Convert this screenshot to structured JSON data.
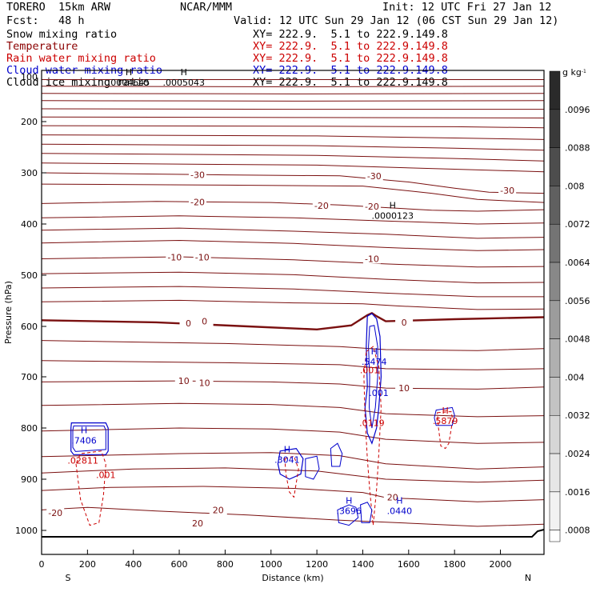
{
  "header": {
    "model": "TORERO  15km ARW",
    "center": "NCAR/MMM",
    "init": "Init: 12 UTC Fri 27 Jan 12",
    "fcst": "Fcst:   48 h",
    "valid": "Valid: 12 UTC Sun 29 Jan 12 (06 CST Sun 29 Jan 12)"
  },
  "legend": [
    {
      "name": "Snow mixing ratio",
      "color": "#000000",
      "xy": "XY= 222.9.  5.1 to 222.9.149.8",
      "xy_color": "#000000"
    },
    {
      "name": "Temperature",
      "color": "#8b0000",
      "xy": "XY= 222.9.  5.1 to 222.9.149.8",
      "xy_color": "#cc0000"
    },
    {
      "name": "Rain water mixing ratio",
      "color": "#cc0000",
      "xy": "XY= 222.9.  5.1 to 222.9.149.8",
      "xy_color": "#cc0000"
    },
    {
      "name": "Cloud water mixing ratio",
      "color": "#0000cc",
      "xy": "XY= 222.9.  5.1 to 222.9.149.8",
      "xy_color": "#0000cc"
    },
    {
      "name": "Cloud ice mixing ratio",
      "color": "#000000",
      "xy": "XY= 222.9.  5.1 to 222.9.149.8",
      "xy_color": "#000000"
    }
  ],
  "chart_data": {
    "type": "contour cross-section",
    "xlabel": "Distance (km)",
    "ylabel": "Pressure (hPa)",
    "xlim": [
      0,
      2190
    ],
    "ylim": [
      1050,
      100
    ],
    "x_ticks": [
      0,
      200,
      400,
      600,
      800,
      1000,
      1200,
      1400,
      1600,
      1800,
      2000
    ],
    "y_ticks": [
      200,
      300,
      400,
      500,
      600,
      700,
      800,
      900,
      1000
    ],
    "y_tick_labels": [
      "200",
      "300",
      "400",
      "500",
      "600",
      "700",
      "800",
      "900",
      "1000"
    ],
    "y_top_label": "100",
    "start_label": "S",
    "end_label": "N",
    "colorbar": {
      "unit": "g kg",
      "unit_exp": "-1",
      "ticks": [
        ".0096",
        ".0088",
        ".008",
        ".0072",
        ".0064",
        ".0056",
        ".0048",
        ".004",
        ".0032",
        ".0024",
        ".0016",
        ".0008"
      ],
      "shades": [
        "#2a2a2a",
        "#3a3a3a",
        "#4d4d4d",
        "#606060",
        "#747474",
        "#888888",
        "#9c9c9c",
        "#b0b0b0",
        "#c3c3c3",
        "#d6d6d6",
        "#e6e6e6",
        "#f2f2f2"
      ]
    },
    "temperature_lines": [
      {
        "label": "",
        "points": [
          [
            0,
            118
          ],
          [
            1100,
            118
          ],
          [
            2190,
            118
          ]
        ]
      },
      {
        "label": "",
        "points": [
          [
            0,
            131
          ],
          [
            1100,
            132
          ],
          [
            2190,
            131
          ]
        ]
      },
      {
        "label": "",
        "points": [
          [
            0,
            145
          ],
          [
            1100,
            146
          ],
          [
            2190,
            145
          ]
        ]
      },
      {
        "label": "",
        "points": [
          [
            0,
            159
          ],
          [
            1100,
            160
          ],
          [
            2190,
            159
          ]
        ]
      },
      {
        "label": "",
        "points": [
          [
            0,
            175
          ],
          [
            1100,
            176
          ],
          [
            2190,
            176
          ]
        ]
      },
      {
        "label": "",
        "points": [
          [
            0,
            191
          ],
          [
            1100,
            192
          ],
          [
            2190,
            193
          ]
        ]
      },
      {
        "label": "",
        "points": [
          [
            0,
            208
          ],
          [
            1200,
            209
          ],
          [
            1800,
            210
          ],
          [
            2190,
            212
          ]
        ]
      },
      {
        "label": "",
        "points": [
          [
            0,
            226
          ],
          [
            1200,
            228
          ],
          [
            1800,
            232
          ],
          [
            2190,
            235
          ]
        ]
      },
      {
        "label": "",
        "points": [
          [
            0,
            244
          ],
          [
            1200,
            247
          ],
          [
            1800,
            252
          ],
          [
            2190,
            256
          ]
        ]
      },
      {
        "label": "",
        "points": [
          [
            0,
            262
          ],
          [
            1200,
            266
          ],
          [
            1800,
            272
          ],
          [
            2190,
            277
          ]
        ]
      },
      {
        "label": "",
        "points": [
          [
            0,
            281
          ],
          [
            1200,
            285
          ],
          [
            1800,
            293
          ],
          [
            2190,
            298
          ]
        ]
      },
      {
        "label": "-30",
        "points": [
          [
            0,
            300
          ],
          [
            800,
            304
          ],
          [
            1300,
            306
          ],
          [
            1600,
            318
          ],
          [
            1800,
            330
          ],
          [
            1950,
            338
          ],
          [
            2190,
            340
          ]
        ]
      },
      {
        "label": "",
        "points": [
          [
            0,
            322
          ],
          [
            800,
            324
          ],
          [
            1400,
            326
          ],
          [
            1700,
            340
          ],
          [
            1900,
            352
          ],
          [
            2190,
            358
          ]
        ]
      },
      {
        "label": "-20",
        "points": [
          [
            0,
            360
          ],
          [
            500,
            356
          ],
          [
            1000,
            358
          ],
          [
            1300,
            363
          ],
          [
            1500,
            368
          ],
          [
            1700,
            373
          ],
          [
            1900,
            375
          ],
          [
            2190,
            372
          ]
        ]
      },
      {
        "label": "",
        "points": [
          [
            0,
            388
          ],
          [
            600,
            384
          ],
          [
            1100,
            388
          ],
          [
            1500,
            394
          ],
          [
            1900,
            400
          ],
          [
            2190,
            398
          ]
        ]
      },
      {
        "label": "",
        "points": [
          [
            0,
            412
          ],
          [
            600,
            408
          ],
          [
            1100,
            414
          ],
          [
            1500,
            420
          ],
          [
            1900,
            428
          ],
          [
            2190,
            426
          ]
        ]
      },
      {
        "label": "",
        "points": [
          [
            0,
            437
          ],
          [
            600,
            432
          ],
          [
            1100,
            438
          ],
          [
            1500,
            446
          ],
          [
            1900,
            452
          ],
          [
            2190,
            450
          ]
        ]
      },
      {
        "label": "-10",
        "points": [
          [
            0,
            468
          ],
          [
            600,
            464
          ],
          [
            1100,
            470
          ],
          [
            1500,
            478
          ],
          [
            1900,
            484
          ],
          [
            2190,
            483
          ]
        ]
      },
      {
        "label": "",
        "points": [
          [
            0,
            497
          ],
          [
            600,
            494
          ],
          [
            1100,
            499
          ],
          [
            1500,
            508
          ],
          [
            1900,
            515
          ],
          [
            2190,
            514
          ]
        ]
      },
      {
        "label": "",
        "points": [
          [
            0,
            525
          ],
          [
            600,
            522
          ],
          [
            1100,
            527
          ],
          [
            1500,
            535
          ],
          [
            1900,
            542
          ],
          [
            2190,
            542
          ]
        ]
      },
      {
        "label": "",
        "points": [
          [
            0,
            552
          ],
          [
            600,
            549
          ],
          [
            1100,
            554
          ],
          [
            1400,
            556
          ],
          [
            1550,
            560
          ],
          [
            1900,
            567
          ],
          [
            2190,
            566
          ]
        ]
      },
      {
        "label": "0",
        "points": [
          [
            0,
            588
          ],
          [
            500,
            592
          ],
          [
            900,
            600
          ],
          [
            1200,
            606
          ],
          [
            1350,
            598
          ],
          [
            1420,
            578
          ],
          [
            1440,
            574
          ],
          [
            1460,
            580
          ],
          [
            1500,
            590
          ],
          [
            1800,
            586
          ],
          [
            2190,
            582
          ]
        ],
        "bold": true
      },
      {
        "label": "",
        "points": [
          [
            0,
            628
          ],
          [
            800,
            634
          ],
          [
            1300,
            640
          ],
          [
            1500,
            646
          ],
          [
            1900,
            648
          ],
          [
            2190,
            644
          ]
        ]
      },
      {
        "label": "",
        "points": [
          [
            0,
            668
          ],
          [
            800,
            672
          ],
          [
            1300,
            676
          ],
          [
            1500,
            684
          ],
          [
            1900,
            686
          ],
          [
            2190,
            684
          ]
        ]
      },
      {
        "label": "10",
        "points": [
          [
            0,
            710
          ],
          [
            600,
            708
          ],
          [
            1000,
            710
          ],
          [
            1300,
            714
          ],
          [
            1500,
            722
          ],
          [
            1900,
            724
          ],
          [
            2190,
            720
          ]
        ]
      },
      {
        "label": "",
        "points": [
          [
            0,
            756
          ],
          [
            600,
            752
          ],
          [
            1000,
            754
          ],
          [
            1300,
            760
          ],
          [
            1500,
            772
          ],
          [
            1900,
            778
          ],
          [
            2190,
            776
          ]
        ]
      },
      {
        "label": "",
        "points": [
          [
            0,
            806
          ],
          [
            600,
            800
          ],
          [
            1000,
            802
          ],
          [
            1300,
            808
          ],
          [
            1500,
            822
          ],
          [
            1900,
            830
          ],
          [
            2190,
            828
          ]
        ]
      },
      {
        "label": "",
        "points": [
          [
            0,
            856
          ],
          [
            600,
            850
          ],
          [
            1000,
            848
          ],
          [
            1300,
            854
          ],
          [
            1500,
            870
          ],
          [
            1900,
            880
          ],
          [
            2190,
            876
          ]
        ]
      },
      {
        "label": "",
        "points": [
          [
            0,
            888
          ],
          [
            400,
            880
          ],
          [
            800,
            878
          ],
          [
            1200,
            884
          ],
          [
            1500,
            900
          ],
          [
            1900,
            906
          ],
          [
            2190,
            902
          ]
        ]
      },
      {
        "label": "20",
        "points": [
          [
            0,
            922
          ],
          [
            300,
            916
          ],
          [
            700,
            914
          ],
          [
            1100,
            918
          ],
          [
            1400,
            926
          ],
          [
            1500,
            936
          ],
          [
            1900,
            944
          ],
          [
            2190,
            940
          ]
        ]
      },
      {
        "label": "20",
        "points": [
          [
            0,
            960
          ],
          [
            200,
            955
          ],
          [
            500,
            962
          ],
          [
            900,
            970
          ],
          [
            1300,
            980
          ],
          [
            1600,
            986
          ],
          [
            1900,
            992
          ],
          [
            2190,
            988
          ]
        ]
      }
    ],
    "temp_labels": [
      {
        "text": "-30",
        "x": 680,
        "y": 304
      },
      {
        "text": "-30",
        "x": 1450,
        "y": 306
      },
      {
        "text": "-30",
        "x": 2030,
        "y": 334
      },
      {
        "text": "-20",
        "x": 680,
        "y": 357
      },
      {
        "text": "-20",
        "x": 1220,
        "y": 364
      },
      {
        "text": "-20",
        "x": 1440,
        "y": 366
      },
      {
        "text": "-10",
        "x": 580,
        "y": 465
      },
      {
        "text": "-10",
        "x": 700,
        "y": 465
      },
      {
        "text": "-10",
        "x": 1440,
        "y": 468
      },
      {
        "text": "0",
        "x": 640,
        "y": 594
      },
      {
        "text": "0",
        "x": 710,
        "y": 590
      },
      {
        "text": "0",
        "x": 1580,
        "y": 592
      },
      {
        "text": "10",
        "x": 620,
        "y": 708
      },
      {
        "text": "10",
        "x": 710,
        "y": 712
      },
      {
        "text": "10",
        "x": 1580,
        "y": 722
      },
      {
        "text": "20",
        "x": 1530,
        "y": 935
      },
      {
        "text": "20",
        "x": 770,
        "y": 960
      },
      {
        "text": "20",
        "x": 680,
        "y": 986
      },
      {
        "text": "-20",
        "x": 60,
        "y": 966
      }
    ],
    "maxima_labels": [
      {
        "mark": "H",
        "value": ".0004645",
        "x": 380,
        "y": 122,
        "color": "#000000"
      },
      {
        "mark": "H",
        "value": ".0005043",
        "x": 620,
        "y": 122,
        "color": "#000000"
      },
      {
        "mark": "H",
        "value": ".0000123",
        "x": 1530,
        "y": 382,
        "color": "#000000"
      },
      {
        "mark": "H",
        "value": ".5474",
        "x": 1450,
        "y": 668,
        "color": "#0000cc"
      },
      {
        "mark": "",
        "value": ".001",
        "x": 1430,
        "y": 685,
        "color": "#cc0000"
      },
      {
        "mark": "",
        "value": ".001",
        "x": 1470,
        "y": 730,
        "color": "#0000cc"
      },
      {
        "mark": "",
        "value": ".0119",
        "x": 1440,
        "y": 788,
        "color": "#cc0000"
      },
      {
        "mark": "H",
        "value": ".5879",
        "x": 1760,
        "y": 784,
        "color": "#cc0000"
      },
      {
        "mark": "H",
        "value": ".7406",
        "x": 185,
        "y": 823,
        "color": "#0000cc"
      },
      {
        "mark": "",
        "value": ".02811",
        "x": 180,
        "y": 862,
        "color": "#cc0000"
      },
      {
        "mark": "",
        "value": ".001",
        "x": 280,
        "y": 890,
        "color": "#cc0000"
      },
      {
        "mark": "H",
        "value": ".3041",
        "x": 1070,
        "y": 860,
        "color": "#0000cc"
      },
      {
        "mark": "H",
        "value": ".3696",
        "x": 1340,
        "y": 960,
        "color": "#0000cc"
      },
      {
        "mark": "H",
        "value": ".0440",
        "x": 1560,
        "y": 960,
        "color": "#0000cc"
      }
    ]
  }
}
